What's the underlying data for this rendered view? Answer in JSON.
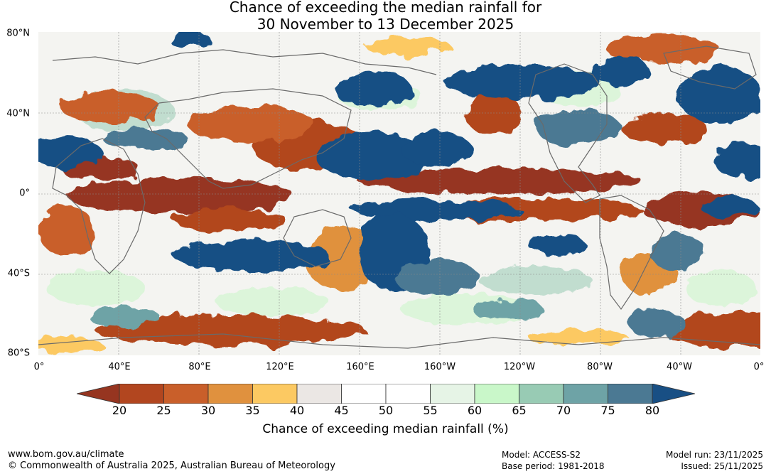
{
  "title": {
    "line1": "Chance of exceeding the median rainfall for",
    "line2": "30 November to 13 December 2025"
  },
  "map": {
    "lat_labels": [
      "80°N",
      "40°N",
      "0°",
      "40°S",
      "80°S"
    ],
    "lon_labels": [
      "0°",
      "40°E",
      "80°E",
      "120°E",
      "160°E",
      "160°W",
      "120°W",
      "80°W",
      "40°W",
      "0°"
    ]
  },
  "colorbar": {
    "ticks": [
      "20",
      "25",
      "30",
      "35",
      "40",
      "45",
      "50",
      "55",
      "60",
      "65",
      "70",
      "75",
      "80"
    ],
    "colors": [
      "#b2461f",
      "#c95f2a",
      "#e0913e",
      "#fcc962",
      "#ebe7e4",
      "#ffffff",
      "#ffffff",
      "#e6f4e6",
      "#c9f7c9",
      "#98cbb4",
      "#6ea3a6",
      "#4b7993"
    ],
    "under_color": "#963520",
    "over_color": "#184f84",
    "label": "Chance of exceeding median rainfall (%)"
  },
  "footer": {
    "website": "www.bom.gov.au/climate",
    "copyright": "© Commonwealth of Australia 2025, Australian Bureau of Meteorology",
    "model": "Model: ACCESS-S2",
    "base_period": "Base period: 1981-2018",
    "model_run": "Model run: 23/11/2025",
    "issued": "Issued: 25/11/2025"
  }
}
